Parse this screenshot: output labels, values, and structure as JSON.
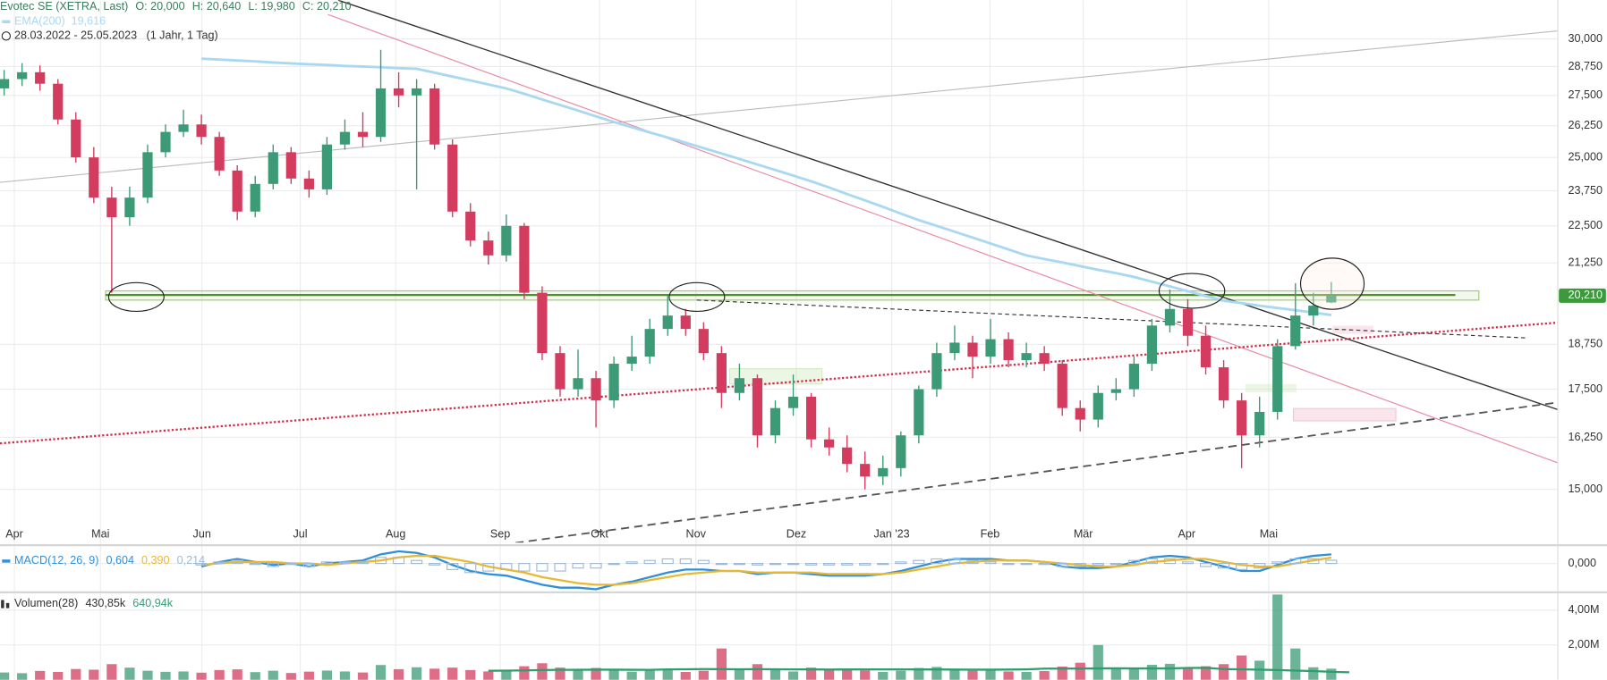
{
  "chart_data": [
    {
      "type": "candlestick",
      "title": "Evotec SE (XETRA, Last)",
      "quote": [
        "O: 20,000",
        "H: 20,640",
        "L: 19,980",
        "C: 20,210"
      ],
      "period": "28.03.2022 - 25.05.2023",
      "period_note": "(1 Jahr, 1 Tag)",
      "up_color": "#3c9a76",
      "down_color": "#d33c5f",
      "open": [
        27800,
        28200,
        28500,
        28000,
        26500,
        25000,
        23500,
        22800,
        23500,
        25200,
        26000,
        26300,
        25800,
        24500,
        23000,
        24000,
        25200,
        24200,
        23800,
        25500,
        26000,
        25800,
        27800,
        27500,
        27800,
        25500,
        23000,
        22000,
        21500,
        22500,
        20300,
        18500,
        17500,
        17800,
        17200,
        18200,
        18400,
        19200,
        19600,
        19200,
        18500,
        17400,
        17800,
        16300,
        17000,
        17300,
        16200,
        16000,
        15600,
        15300,
        15500,
        16300,
        17500,
        18500,
        18800,
        18400,
        18900,
        18300,
        18500,
        18200,
        17000,
        16700,
        17400,
        17500,
        18200,
        19300,
        19800,
        19000,
        18100,
        17200,
        16300,
        16900,
        18700,
        19600,
        20000
      ],
      "high": [
        28600,
        28900,
        28800,
        28200,
        26800,
        25400,
        23900,
        23900,
        25500,
        26300,
        26900,
        26700,
        26000,
        24700,
        24300,
        25500,
        25400,
        24500,
        25800,
        26500,
        26800,
        29500,
        28500,
        28200,
        28000,
        25700,
        23300,
        22300,
        22900,
        22600,
        20500,
        18700,
        18600,
        18000,
        18400,
        19000,
        19500,
        20200,
        19800,
        19400,
        18700,
        18200,
        17900,
        17200,
        17900,
        17400,
        16500,
        16300,
        15900,
        15800,
        16400,
        17600,
        18800,
        19300,
        19000,
        19500,
        19100,
        18800,
        18700,
        18300,
        17200,
        17600,
        17800,
        18400,
        19500,
        20400,
        20100,
        19300,
        18300,
        17400,
        17300,
        18900,
        20600,
        20300,
        20640
      ],
      "low": [
        27500,
        27900,
        27700,
        26300,
        24800,
        23300,
        20300,
        22500,
        23300,
        25000,
        25800,
        25500,
        24300,
        22700,
        22800,
        23800,
        24000,
        23500,
        23600,
        25300,
        25400,
        25600,
        27000,
        23800,
        25300,
        22800,
        21800,
        21200,
        21300,
        20100,
        18300,
        17300,
        17300,
        16500,
        17000,
        18000,
        18200,
        19000,
        19000,
        18300,
        17000,
        17200,
        16000,
        16100,
        16800,
        16000,
        15800,
        15400,
        15000,
        15100,
        15300,
        16100,
        17300,
        18300,
        17800,
        18200,
        18100,
        18100,
        18000,
        16800,
        16400,
        16500,
        17200,
        17300,
        18000,
        19100,
        18700,
        17900,
        17000,
        15500,
        16000,
        16700,
        18600,
        19300,
        19980
      ],
      "close": [
        28200,
        28500,
        28000,
        26500,
        25000,
        23500,
        22800,
        23500,
        25200,
        26000,
        26300,
        25800,
        24500,
        23000,
        24000,
        25200,
        24200,
        23800,
        25500,
        26000,
        25800,
        27800,
        27500,
        27800,
        25500,
        23000,
        22000,
        21500,
        22500,
        20300,
        18500,
        17500,
        17800,
        17200,
        18200,
        18400,
        19200,
        19600,
        19200,
        18500,
        17400,
        17800,
        16300,
        17000,
        17300,
        16200,
        16000,
        15600,
        15300,
        15500,
        16300,
        17500,
        18500,
        18800,
        18400,
        18900,
        18300,
        18500,
        18200,
        17000,
        16700,
        17400,
        17500,
        18200,
        19300,
        19800,
        19000,
        18100,
        17200,
        16300,
        16900,
        18700,
        19600,
        19900,
        20210
      ],
      "overlay": {
        "name": "EMA(200)",
        "value_label": "19,616",
        "color": "#a9d9f2",
        "values": [
          null,
          null,
          null,
          null,
          null,
          null,
          null,
          null,
          null,
          null,
          null,
          29100,
          29060,
          29020,
          28980,
          28930,
          28890,
          28850,
          28820,
          28780,
          28750,
          28720,
          28680,
          28650,
          28480,
          28310,
          28140,
          27970,
          27800,
          27570,
          27330,
          27100,
          26870,
          26630,
          26400,
          26190,
          25980,
          25780,
          25570,
          25360,
          25150,
          24940,
          24730,
          24520,
          24310,
          24100,
          23870,
          23630,
          23400,
          23170,
          22930,
          22700,
          22500,
          22300,
          22100,
          21900,
          21700,
          21500,
          21380,
          21270,
          21150,
          21030,
          20920,
          20800,
          20650,
          20500,
          20350,
          20200,
          20050,
          19980,
          19900,
          19830,
          19760,
          19690,
          19616
        ]
      },
      "price_marker": {
        "value": 20210,
        "label": "20,210",
        "color": "#3c9a3c"
      },
      "xlim": [
        -0.23,
        86.63
      ],
      "xticks": [
        {
          "value": 0.57,
          "label": "Apr"
        },
        {
          "value": 5.37,
          "label": "Mai"
        },
        {
          "value": 11.03,
          "label": "Jun"
        },
        {
          "value": 16.51,
          "label": "Jul"
        },
        {
          "value": 21.83,
          "label": "Aug"
        },
        {
          "value": 27.66,
          "label": "Sep"
        },
        {
          "value": 33.2,
          "label": "Okt"
        },
        {
          "value": 38.57,
          "label": "Nov"
        },
        {
          "value": 44.17,
          "label": "Dez"
        },
        {
          "value": 49.49,
          "label": "Jan '23"
        },
        {
          "value": 54.97,
          "label": "Feb"
        },
        {
          "value": 60.17,
          "label": "Mär"
        },
        {
          "value": 65.94,
          "label": "Apr"
        },
        {
          "value": 70.51,
          "label": "Mai"
        }
      ],
      "ylim": [
        13820,
        31840
      ],
      "log_y": true,
      "grid": true,
      "yticks": [
        {
          "value": 15000,
          "label": "15,000"
        },
        {
          "value": 16250,
          "label": "16,250"
        },
        {
          "value": 17500,
          "label": "17,500"
        },
        {
          "value": 18750,
          "label": "18,750"
        },
        {
          "value": 21250,
          "label": "21,250"
        },
        {
          "value": 22500,
          "label": "22,500"
        },
        {
          "value": 23750,
          "label": "23,750"
        },
        {
          "value": 25000,
          "label": "25,000"
        },
        {
          "value": 26250,
          "label": "26,250"
        },
        {
          "value": 27500,
          "label": "27,500"
        },
        {
          "value": 28750,
          "label": "28,750"
        },
        {
          "value": 30000,
          "label": "30,000"
        }
      ]
    },
    {
      "type": "line",
      "series": [
        {
          "name": "MACD(12, 26, 9)",
          "value_label": "0,604",
          "color": "#2f8fd8",
          "values": [
            null,
            null,
            null,
            null,
            null,
            null,
            null,
            null,
            null,
            null,
            null,
            -0.2,
            0.1,
            0.3,
            0.1,
            -0.1,
            0.0,
            -0.2,
            0.0,
            0.1,
            0.2,
            0.6,
            0.8,
            0.7,
            0.4,
            -0.1,
            -0.5,
            -0.7,
            -0.8,
            -1.1,
            -1.4,
            -1.6,
            -1.6,
            -1.7,
            -1.4,
            -1.2,
            -0.9,
            -0.6,
            -0.4,
            -0.4,
            -0.5,
            -0.5,
            -0.7,
            -0.6,
            -0.6,
            -0.7,
            -0.8,
            -0.8,
            -0.8,
            -0.7,
            -0.5,
            -0.2,
            0.1,
            0.3,
            0.3,
            0.3,
            0.2,
            0.2,
            0.1,
            -0.2,
            -0.3,
            -0.3,
            -0.2,
            0.1,
            0.4,
            0.5,
            0.4,
            0.1,
            -0.2,
            -0.5,
            -0.5,
            -0.1,
            0.3,
            0.5,
            0.604
          ]
        },
        {
          "value_label": "0,390",
          "color": "#e8b830",
          "values": [
            null,
            null,
            null,
            null,
            null,
            null,
            null,
            null,
            null,
            null,
            null,
            -0.1,
            0,
            0.1,
            0.1,
            0.1,
            0,
            0,
            -0.1,
            0,
            0.1,
            0.2,
            0.4,
            0.5,
            0.5,
            0.3,
            0.1,
            -0.2,
            -0.4,
            -0.6,
            -0.9,
            -1.1,
            -1.3,
            -1.4,
            -1.4,
            -1.3,
            -1.1,
            -0.9,
            -0.7,
            -0.6,
            -0.5,
            -0.5,
            -0.6,
            -0.6,
            -0.6,
            -0.6,
            -0.7,
            -0.7,
            -0.7,
            -0.7,
            -0.6,
            -0.4,
            -0.2,
            0,
            0.1,
            0.2,
            0.2,
            0.2,
            0.1,
            0,
            -0.1,
            -0.2,
            -0.2,
            -0.1,
            0.1,
            0.2,
            0.3,
            0.3,
            0.1,
            -0.1,
            -0.2,
            -0.2,
            0,
            0.2,
            0.39
          ]
        },
        {
          "value_label": "0,214",
          "color": "#9fb9d6",
          "style": "histogram",
          "values": [
            null,
            null,
            null,
            null,
            null,
            null,
            null,
            null,
            null,
            null,
            null,
            -0.1,
            0.1,
            0.2,
            0,
            -0.2,
            0,
            -0.2,
            0.1,
            0.1,
            0.1,
            0.4,
            0.4,
            0.2,
            -0.1,
            -0.4,
            -0.6,
            -0.5,
            -0.4,
            -0.5,
            -0.5,
            -0.5,
            -0.3,
            -0.3,
            0,
            0.1,
            0.2,
            0.3,
            0.3,
            0.2,
            0,
            0,
            -0.1,
            0,
            0,
            -0.1,
            -0.1,
            -0.1,
            -0.1,
            0,
            0.1,
            0.2,
            0.3,
            0.3,
            0.2,
            0.1,
            0,
            0,
            0,
            -0.2,
            -0.2,
            -0.1,
            0,
            0.2,
            0.3,
            0.3,
            0.1,
            -0.2,
            -0.3,
            -0.4,
            -0.3,
            0.1,
            0.3,
            0.3,
            0.214
          ]
        }
      ],
      "ylim": [
        -1.8,
        0.9
      ],
      "yticks": [
        {
          "value": 0,
          "label": "0,000"
        }
      ]
    },
    {
      "type": "bar",
      "title": "Volumen(28)",
      "series": [
        {
          "value_label": "640,94k",
          "color": "#3c9a76",
          "style": "bar",
          "values": [
            420000,
            380000,
            510000,
            450000,
            620000,
            580000,
            900000,
            700000,
            520000,
            460000,
            480000,
            410000,
            560000,
            600000,
            440000,
            520000,
            390000,
            470000,
            530000,
            480000,
            420000,
            850000,
            610000,
            720000,
            640000,
            700000,
            560000,
            480000,
            520000,
            780000,
            950000,
            700000,
            560000,
            680000,
            540000,
            470000,
            620000,
            580000,
            450000,
            520000,
            1800000,
            640000,
            900000,
            560000,
            480000,
            700000,
            580000,
            620000,
            540000,
            460000,
            520000,
            680000,
            740000,
            580000,
            520000,
            610000,
            480000,
            450000,
            500000,
            760000,
            980000,
            2000000,
            620000,
            680000,
            860000,
            920000,
            640000,
            780000,
            900000,
            1400000,
            1100000,
            4900000,
            1800000,
            720000,
            640940
          ]
        },
        {
          "value_label": "430,85k",
          "color": "#2e9e6e",
          "style": "line",
          "values": [
            null,
            null,
            null,
            null,
            null,
            null,
            null,
            null,
            null,
            null,
            null,
            null,
            null,
            null,
            null,
            null,
            null,
            null,
            null,
            null,
            null,
            null,
            null,
            null,
            null,
            null,
            null,
            520000,
            530000,
            540000,
            560000,
            570000,
            575000,
            580000,
            580000,
            575000,
            570000,
            600000,
            605000,
            615000,
            612000,
            608000,
            610000,
            605000,
            600000,
            598000,
            590000,
            592000,
            598000,
            600000,
            598000,
            595000,
            594000,
            590000,
            585000,
            580000,
            588000,
            600000,
            640000,
            640000,
            645000,
            650000,
            660000,
            655000,
            650000,
            655000,
            680000,
            690000,
            620000,
            600000,
            580000,
            560000,
            530000,
            500000,
            460000,
            430850
          ]
        }
      ],
      "ylim": [
        0,
        4940000
      ],
      "yticks": [
        {
          "value": 2000000,
          "label": "2,00M"
        },
        {
          "value": 4000000,
          "label": "4,00M"
        }
      ]
    }
  ]
}
